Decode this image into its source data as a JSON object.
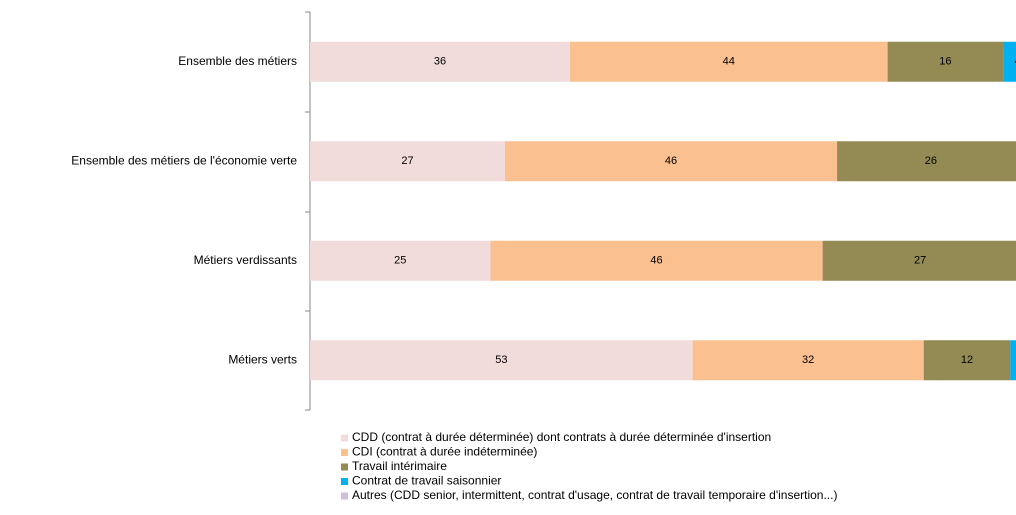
{
  "chart_data": {
    "type": "stacked-bar-horizontal",
    "categories": [
      "Ensemble des métiers",
      "Ensemble des métiers de l'économie verte",
      "Métiers verdissants",
      "Métiers verts"
    ],
    "series": [
      {
        "name": "CDD (contrat à durée déterminée) dont contrats à durée déterminée d'insertion",
        "color": "#f2dcdb",
        "values": [
          36,
          27,
          25,
          53
        ]
      },
      {
        "name": "CDI (contrat à durée indéterminée)",
        "color": "#fac090",
        "values": [
          44,
          46,
          46,
          32
        ]
      },
      {
        "name": "Travail intérimaire",
        "color": "#948a54",
        "values": [
          16,
          26,
          27,
          12
        ]
      },
      {
        "name": "Contrat de travail saisonnier",
        "color": "#00b0f0",
        "values": [
          4,
          1,
          1,
          1
        ]
      },
      {
        "name": "Autres (CDD senior, intermittent, contrat d'usage, contrat de travail temporaire d'insertion...)",
        "color": "#ccc0da",
        "values": [
          0,
          0,
          1,
          2
        ]
      }
    ],
    "xlim": [
      0,
      100
    ]
  }
}
